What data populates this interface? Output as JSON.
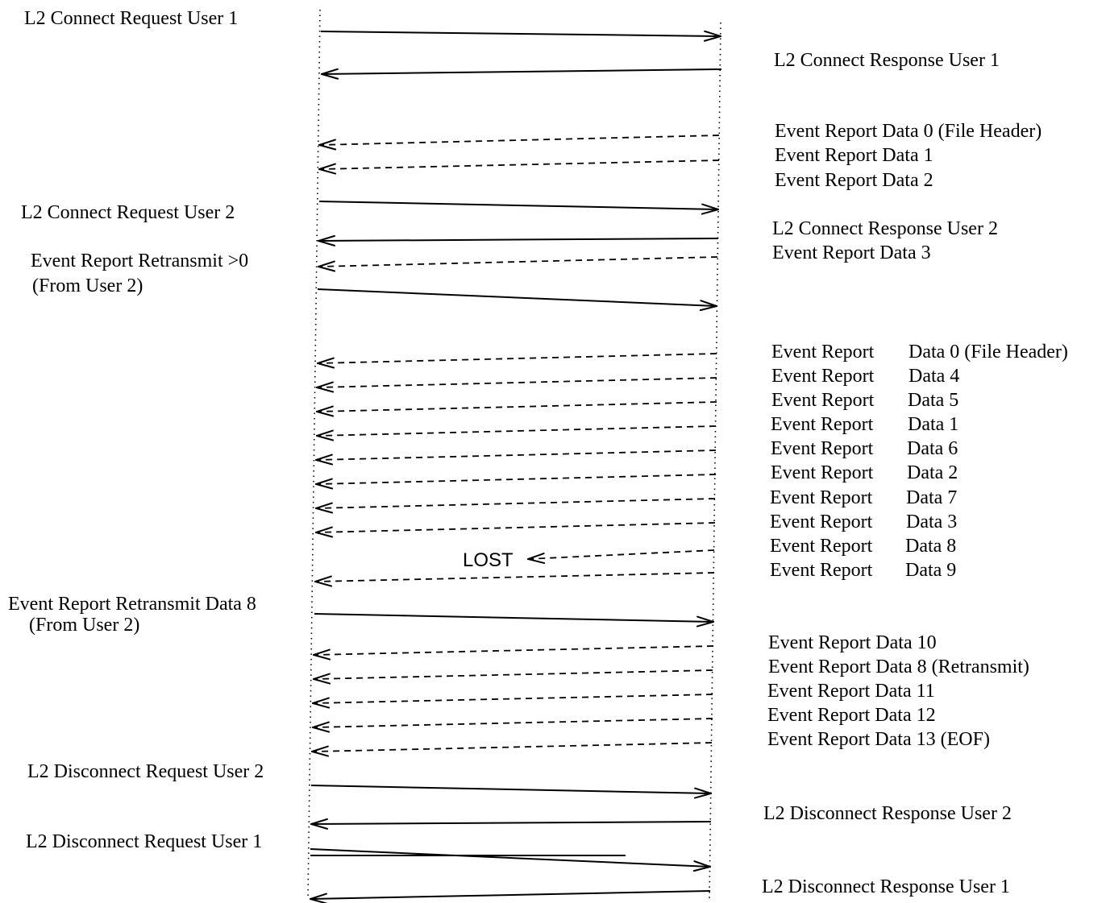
{
  "left_labels": [
    {
      "id": "l2-connect-request-user-1",
      "text": "L2 Connect Request User 1"
    },
    {
      "id": "l2-connect-request-user-2",
      "text": "L2 Connect Request User 2"
    },
    {
      "id": "event-report-retransmit-0",
      "text": "Event Report Retransmit >0"
    },
    {
      "id": "from-user-2-a",
      "text": "(From User 2)"
    },
    {
      "id": "event-report-retransmit-data-8",
      "text": "Event Report Retransmit Data 8"
    },
    {
      "id": "from-user-2-b",
      "text": "(From User 2)"
    },
    {
      "id": "l2-disconnect-request-user-2",
      "text": "L2 Disconnect Request User 2"
    },
    {
      "id": "l2-disconnect-request-user-1",
      "text": "L2 Disconnect Request User 1"
    }
  ],
  "right_labels": [
    {
      "id": "l2-connect-response-user-1",
      "text": "L2 Connect Response User 1"
    },
    {
      "id": "event-report-data-0-file-header",
      "text": "Event Report Data 0 (File Header)"
    },
    {
      "id": "event-report-data-1",
      "text": "Event Report Data 1"
    },
    {
      "id": "event-report-data-2",
      "text": "Event Report Data 2"
    },
    {
      "id": "l2-connect-response-user-2",
      "text": "L2 Connect Response User 2"
    },
    {
      "id": "event-report-data-3",
      "text": "Event Report Data 3"
    },
    {
      "id": "event-report-data-10",
      "text": "Event Report Data 10"
    },
    {
      "id": "event-report-data-8-retransmit",
      "text": "Event Report Data 8 (Retransmit)"
    },
    {
      "id": "event-report-data-11",
      "text": "Event Report Data 11"
    },
    {
      "id": "event-report-data-12",
      "text": "Event Report Data 12"
    },
    {
      "id": "event-report-data-13-eof",
      "text": "Event Report Data 13 (EOF)"
    },
    {
      "id": "l2-disconnect-response-user-2",
      "text": "L2 Disconnect Response User 2"
    },
    {
      "id": "l2-disconnect-response-user-1",
      "text": "L2 Disconnect Response User 1"
    }
  ],
  "event_rows": [
    {
      "prefix": "Event Report",
      "data": "Data 0 (File Header)"
    },
    {
      "prefix": "Event Report",
      "data": "Data 4"
    },
    {
      "prefix": "Event Report",
      "data": "Data 5"
    },
    {
      "prefix": "Event Report",
      "data": "Data 1"
    },
    {
      "prefix": "Event Report",
      "data": "Data 6"
    },
    {
      "prefix": "Event Report",
      "data": "Data 2"
    },
    {
      "prefix": "Event Report",
      "data": "Data 7"
    },
    {
      "prefix": "Event Report",
      "data": "Data 3"
    },
    {
      "prefix": "Event Report",
      "data": "Data 8"
    },
    {
      "prefix": "Event Report",
      "data": "Data 9"
    }
  ],
  "lost_label": "LOST"
}
